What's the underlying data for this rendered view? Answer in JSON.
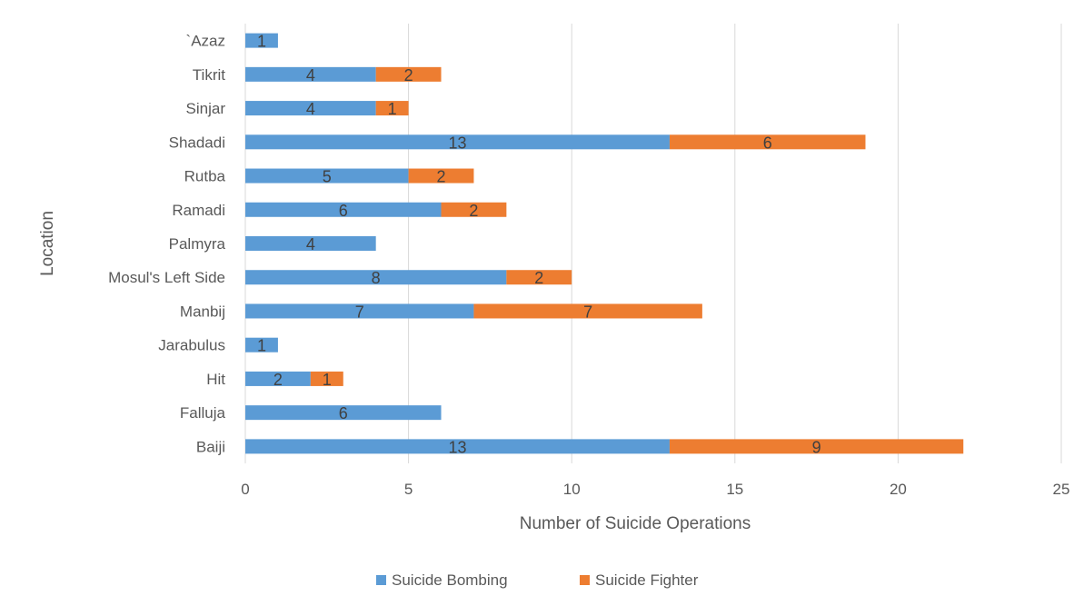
{
  "chart_data": {
    "type": "bar",
    "orientation": "horizontal",
    "stacked": true,
    "xlabel": "Number of Suicide Operations",
    "ylabel": "Location",
    "xlim": [
      0,
      25
    ],
    "xticks": [
      0,
      5,
      10,
      15,
      20,
      25
    ],
    "grid": "vertical",
    "legend_position": "bottom",
    "categories": [
      "`Azaz",
      "Tikrit",
      "Sinjar",
      "Shadadi",
      "Rutba",
      "Ramadi",
      "Palmyra",
      "Mosul's Left Side",
      "Manbij",
      "Jarabulus",
      "Hit",
      "Falluja",
      "Baiji"
    ],
    "series": [
      {
        "name": "Suicide Bombing",
        "color": "#5b9bd5",
        "values": [
          1,
          4,
          4,
          13,
          5,
          6,
          4,
          8,
          7,
          1,
          2,
          6,
          13
        ]
      },
      {
        "name": "Suicide Fighter",
        "color": "#ed7d31",
        "values": [
          0,
          2,
          1,
          6,
          2,
          2,
          0,
          2,
          7,
          0,
          1,
          0,
          9
        ]
      }
    ]
  }
}
